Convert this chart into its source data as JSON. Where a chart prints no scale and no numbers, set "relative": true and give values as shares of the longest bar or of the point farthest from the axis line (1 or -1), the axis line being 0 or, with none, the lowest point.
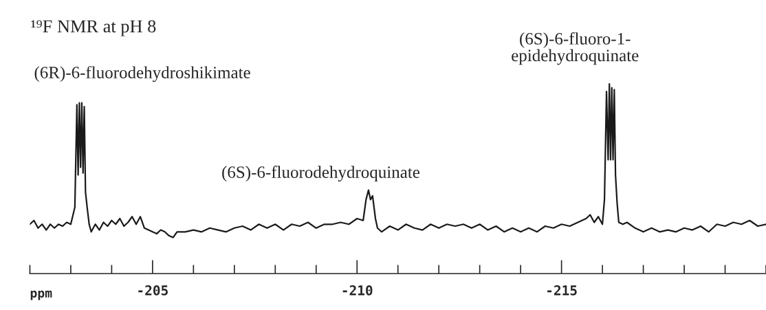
{
  "chart_data": {
    "type": "line",
    "title": "¹⁹F NMR at pH 8",
    "xlabel": "ppm",
    "relative": true,
    "tick_labels": "x",
    "xlim": [
      -202,
      -220
    ],
    "xticks": [
      {
        "value": -202,
        "label": null
      },
      {
        "value": -203,
        "label": null
      },
      {
        "value": -204,
        "label": null
      },
      {
        "value": -205,
        "label": "-205"
      },
      {
        "value": -206,
        "label": null
      },
      {
        "value": -207,
        "label": null
      },
      {
        "value": -208,
        "label": null
      },
      {
        "value": -209,
        "label": null
      },
      {
        "value": -210,
        "label": "-210"
      },
      {
        "value": -211,
        "label": null
      },
      {
        "value": -212,
        "label": null
      },
      {
        "value": -213,
        "label": null
      },
      {
        "value": -214,
        "label": null
      },
      {
        "value": -215,
        "label": "-215"
      },
      {
        "value": -216,
        "label": null
      },
      {
        "value": -217,
        "label": null
      },
      {
        "value": -218,
        "label": null
      },
      {
        "value": -219,
        "label": null
      },
      {
        "value": -220,
        "label": null
      }
    ],
    "annotations": [
      {
        "text": "(6R)-6-fluorodehydroshikimate",
        "x": -203.21,
        "y": 0.9
      },
      {
        "text": "(6S)-6-fluorodehydroquinate",
        "x": -210.28,
        "y": 0.44
      },
      {
        "text": "(6S)-6-fluoro-1-\nepidehydroquinate",
        "x": -216.17,
        "y": 1.0
      }
    ],
    "series": [
      {
        "color": "#1a1a1a",
        "x": [
          -202.0,
          -202.1,
          -202.2,
          -202.3,
          -202.4,
          -202.5,
          -202.6,
          -202.7,
          -202.8,
          -202.9,
          -203.0,
          -203.1,
          -203.15,
          -203.18,
          -203.21,
          -203.24,
          -203.27,
          -203.3,
          -203.33,
          -203.36,
          -203.4,
          -203.45,
          -203.5,
          -203.6,
          -203.7,
          -203.8,
          -203.9,
          -204.0,
          -204.1,
          -204.2,
          -204.3,
          -204.4,
          -204.5,
          -204.6,
          -204.7,
          -204.8,
          -204.9,
          -205.0,
          -205.1,
          -205.2,
          -205.3,
          -205.4,
          -205.5,
          -205.6,
          -205.8,
          -206.0,
          -206.2,
          -206.4,
          -206.6,
          -206.8,
          -207.0,
          -207.2,
          -207.4,
          -207.6,
          -207.8,
          -208.0,
          -208.2,
          -208.4,
          -208.6,
          -208.8,
          -209.0,
          -209.2,
          -209.4,
          -209.6,
          -209.8,
          -210.0,
          -210.15,
          -210.22,
          -210.28,
          -210.33,
          -210.38,
          -210.45,
          -210.5,
          -210.6,
          -210.8,
          -211.0,
          -211.2,
          -211.4,
          -211.6,
          -211.8,
          -212.0,
          -212.2,
          -212.4,
          -212.6,
          -212.8,
          -213.0,
          -213.2,
          -213.4,
          -213.6,
          -213.8,
          -214.0,
          -214.2,
          -214.4,
          -214.6,
          -214.8,
          -215.0,
          -215.2,
          -215.4,
          -215.6,
          -215.7,
          -215.8,
          -215.9,
          -216.0,
          -216.05,
          -216.1,
          -216.14,
          -216.17,
          -216.2,
          -216.23,
          -216.26,
          -216.29,
          -216.32,
          -216.36,
          -216.4,
          -216.5,
          -216.6,
          -216.8,
          -217.0,
          -217.2,
          -217.4,
          -217.6,
          -217.8,
          -218.0,
          -218.2,
          -218.4,
          -218.6,
          -218.8,
          -219.0,
          -219.2,
          -219.4,
          -219.6,
          -219.8,
          -220.0
        ],
        "values": [
          0.26,
          0.28,
          0.24,
          0.26,
          0.23,
          0.26,
          0.24,
          0.26,
          0.25,
          0.27,
          0.26,
          0.35,
          0.89,
          0.52,
          0.9,
          0.56,
          0.9,
          0.53,
          0.88,
          0.43,
          0.35,
          0.26,
          0.22,
          0.26,
          0.23,
          0.27,
          0.25,
          0.28,
          0.26,
          0.29,
          0.25,
          0.27,
          0.3,
          0.26,
          0.3,
          0.24,
          0.23,
          0.22,
          0.21,
          0.23,
          0.22,
          0.2,
          0.19,
          0.22,
          0.22,
          0.23,
          0.22,
          0.24,
          0.23,
          0.22,
          0.24,
          0.25,
          0.23,
          0.26,
          0.24,
          0.26,
          0.23,
          0.26,
          0.25,
          0.27,
          0.24,
          0.26,
          0.26,
          0.27,
          0.26,
          0.29,
          0.28,
          0.39,
          0.44,
          0.39,
          0.41,
          0.29,
          0.24,
          0.22,
          0.25,
          0.23,
          0.26,
          0.24,
          0.23,
          0.26,
          0.24,
          0.26,
          0.25,
          0.26,
          0.24,
          0.26,
          0.23,
          0.25,
          0.22,
          0.24,
          0.22,
          0.24,
          0.22,
          0.25,
          0.24,
          0.26,
          0.25,
          0.27,
          0.29,
          0.31,
          0.27,
          0.3,
          0.26,
          0.39,
          0.96,
          0.6,
          1.0,
          0.6,
          0.98,
          0.6,
          0.97,
          0.52,
          0.37,
          0.27,
          0.26,
          0.27,
          0.24,
          0.22,
          0.24,
          0.22,
          0.23,
          0.22,
          0.24,
          0.23,
          0.25,
          0.22,
          0.26,
          0.25,
          0.27,
          0.26,
          0.28,
          0.25,
          0.26
        ]
      }
    ]
  }
}
